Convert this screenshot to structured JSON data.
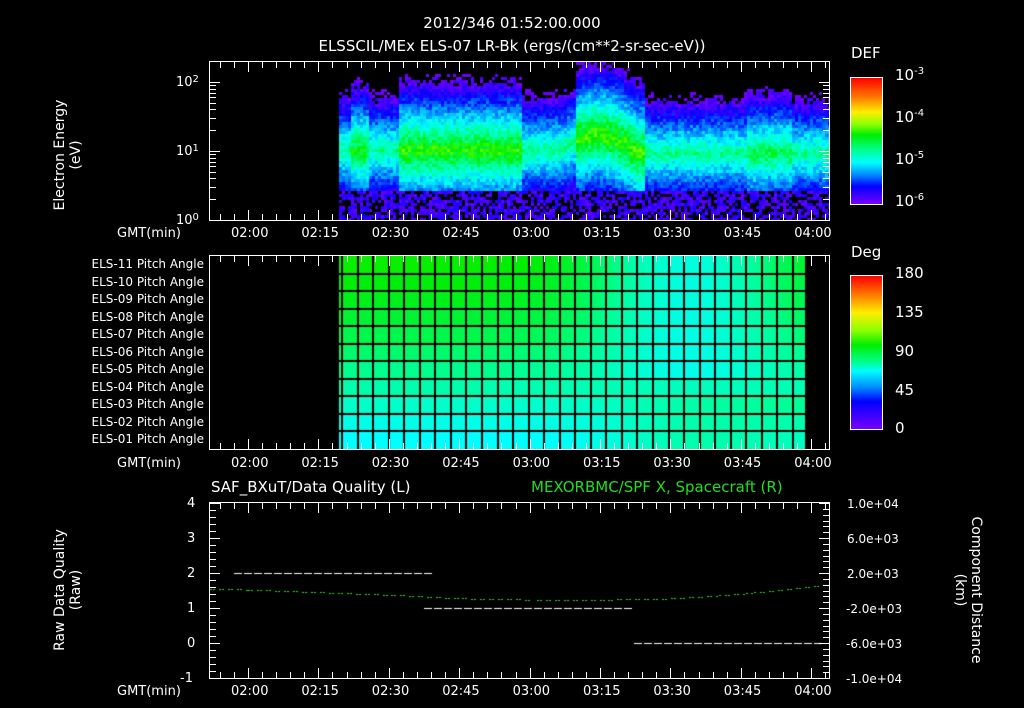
{
  "header": {
    "timestamp": "2012/346 01:52:00.000",
    "subtitle": "ELSSCIL/MEx ELS-07 LR-Bk  (ergs/(cm**2-sr-sec-eV))"
  },
  "time_axis": {
    "label": "GMT(min)",
    "ticks": [
      "02:00",
      "02:15",
      "02:30",
      "02:45",
      "03:00",
      "03:15",
      "03:30",
      "03:45",
      "04:00"
    ]
  },
  "panel_energy": {
    "ylabel_line1": "Electron Energy",
    "ylabel_line2": "(eV)",
    "yticks": [
      {
        "base": "10",
        "exp": "2"
      },
      {
        "base": "10",
        "exp": "1"
      },
      {
        "base": "10",
        "exp": "0"
      }
    ],
    "colorbar": {
      "title": "DEF",
      "ticks": [
        {
          "base": "10",
          "exp": "-3"
        },
        {
          "base": "10",
          "exp": "-4"
        },
        {
          "base": "10",
          "exp": "-5"
        },
        {
          "base": "10",
          "exp": "-6"
        }
      ]
    }
  },
  "panel_pitch": {
    "row_labels": [
      "ELS-11 Pitch Angle",
      "ELS-10 Pitch Angle",
      "ELS-09 Pitch Angle",
      "ELS-08 Pitch Angle",
      "ELS-07 Pitch Angle",
      "ELS-06 Pitch Angle",
      "ELS-05 Pitch Angle",
      "ELS-04 Pitch Angle",
      "ELS-03 Pitch Angle",
      "ELS-02 Pitch Angle",
      "ELS-01 Pitch Angle"
    ],
    "colorbar": {
      "title": "Deg",
      "ticks": [
        "180",
        "135",
        "90",
        "45",
        "0"
      ]
    }
  },
  "panel_quality": {
    "left_title": "SAF_BXuT/Data Quality (L)",
    "right_title": "MEXORBMC/SPF X, Spacecraft (R)",
    "ylabel_line1": "Raw Data Quality",
    "ylabel_line2": "(Raw)",
    "yticks_left": [
      "4",
      "3",
      "2",
      "1",
      "0",
      "-1"
    ],
    "yticks_right": [
      "1.0e+04",
      "6.0e+03",
      "2.0e+03",
      "-2.0e+03",
      "-6.0e+03",
      "-1.0e+04"
    ],
    "ylabel_right_line1": "Component Distance",
    "ylabel_right_line2": "(km)"
  },
  "colors": {
    "background": "#000000",
    "axes": "#ffffff",
    "spacecraft_series": "#22dd22"
  },
  "chart_data": [
    {
      "type": "heatmap",
      "title": "ELSSCIL/MEx ELS-07 LR-Bk (ergs/(cm**2-sr-sec-eV))",
      "xlabel": "GMT(min)",
      "ylabel": "Electron Energy (eV)",
      "yscale": "log",
      "ylim": [
        1,
        150
      ],
      "xlim": [
        "01:52",
        "04:02"
      ],
      "data_start": "02:21",
      "colorbar": {
        "label": "DEF",
        "scale": "log",
        "range": [
          1e-06,
          0.001
        ]
      },
      "description": "Spectrogram with main band ~5-30 eV at DEF ~1e-5 to 1e-4; enhanced flux 02:27-02:40 and 03:05-03:22 up to ~50 eV; background noise below 3 eV"
    },
    {
      "type": "heatmap",
      "title": "ELS Pitch Angle",
      "xlabel": "GMT(min)",
      "categories": [
        "ELS-11",
        "ELS-10",
        "ELS-09",
        "ELS-08",
        "ELS-07",
        "ELS-06",
        "ELS-05",
        "ELS-04",
        "ELS-03",
        "ELS-02",
        "ELS-01"
      ],
      "xlim": [
        "01:52",
        "04:02"
      ],
      "data_range": [
        "02:21",
        "03:59"
      ],
      "colorbar": {
        "label": "Deg",
        "range": [
          0,
          180
        ]
      },
      "approx_values_start": [
        100,
        98,
        96,
        93,
        90,
        86,
        82,
        77,
        72,
        67,
        63
      ],
      "approx_values_min_region": {
        "time": "03:35",
        "center_value": 65
      }
    },
    {
      "type": "line",
      "title": "SAF_BXuT/Data Quality (L) / MEXORBMC/SPF X, Spacecraft (R)",
      "xlabel": "GMT(min)",
      "ylabel_left": "Raw Data Quality (Raw)",
      "ylabel_right": "Component Distance (km)",
      "ylim_left": [
        -1,
        4
      ],
      "ylim_right": [
        -10000,
        10000
      ],
      "series": [
        {
          "name": "Data Quality",
          "axis": "left",
          "color": "#ffffff",
          "segments": [
            {
              "x": [
                "01:57",
                "02:37"
              ],
              "y": 2
            },
            {
              "x": [
                "02:37",
                "03:21"
              ],
              "y": 1
            },
            {
              "x": [
                "03:21",
                "03:59"
              ],
              "y": 0
            }
          ]
        },
        {
          "name": "MEXORBMC/SPF X",
          "axis": "right",
          "color": "#22dd22",
          "x": [
            "01:52",
            "02:00",
            "02:15",
            "02:30",
            "02:45",
            "03:00",
            "03:15",
            "03:30",
            "03:45",
            "04:02"
          ],
          "y": [
            209,
            100,
            -200,
            -500,
            -900,
            -1050,
            -1050,
            -900,
            -300,
            700
          ]
        }
      ]
    }
  ]
}
